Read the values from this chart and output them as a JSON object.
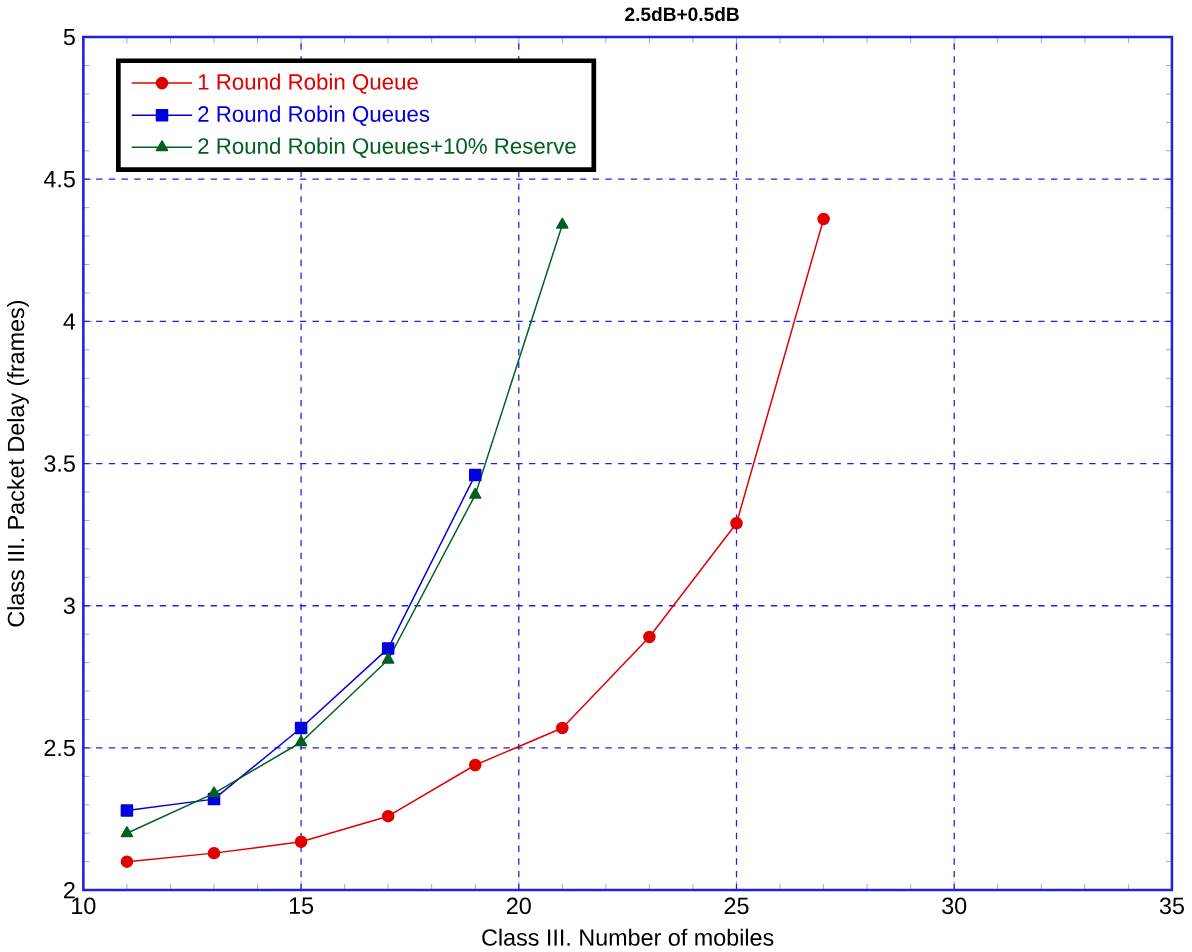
{
  "chart_data": {
    "type": "line",
    "title": "**2.5dB+0.5dB**",
    "xlabel": "Class III. Number of mobiles",
    "ylabel": "Class III. Packet Delay (frames)",
    "x": [
      11,
      13,
      15,
      17,
      19,
      21,
      23,
      25,
      27
    ],
    "series": [
      {
        "name": "1 Round Robin Queue",
        "color": "#e00000",
        "marker": "circle",
        "values": [
          2.1,
          2.13,
          2.17,
          2.26,
          2.44,
          2.57,
          2.89,
          3.29,
          4.36
        ]
      },
      {
        "name": "2 Round Robin Queues",
        "color": "#0000e0",
        "marker": "square",
        "values": [
          2.28,
          2.32,
          2.57,
          2.85,
          3.46,
          null,
          null,
          null,
          null
        ]
      },
      {
        "name": "2 Round Robin Queues+10% Reserve",
        "color": "#006020",
        "marker": "triangle",
        "values": [
          2.2,
          2.34,
          2.52,
          2.81,
          3.39,
          4.34,
          null,
          null,
          null
        ]
      }
    ],
    "xlim": [
      10,
      35
    ],
    "ylim": [
      2,
      5
    ],
    "xticks": [
      10,
      15,
      20,
      25,
      30,
      35
    ],
    "yticks": [
      2,
      2.5,
      3,
      3.5,
      4,
      4.5,
      5
    ],
    "grid": true,
    "legend": "top left",
    "line_style": "solid"
  }
}
